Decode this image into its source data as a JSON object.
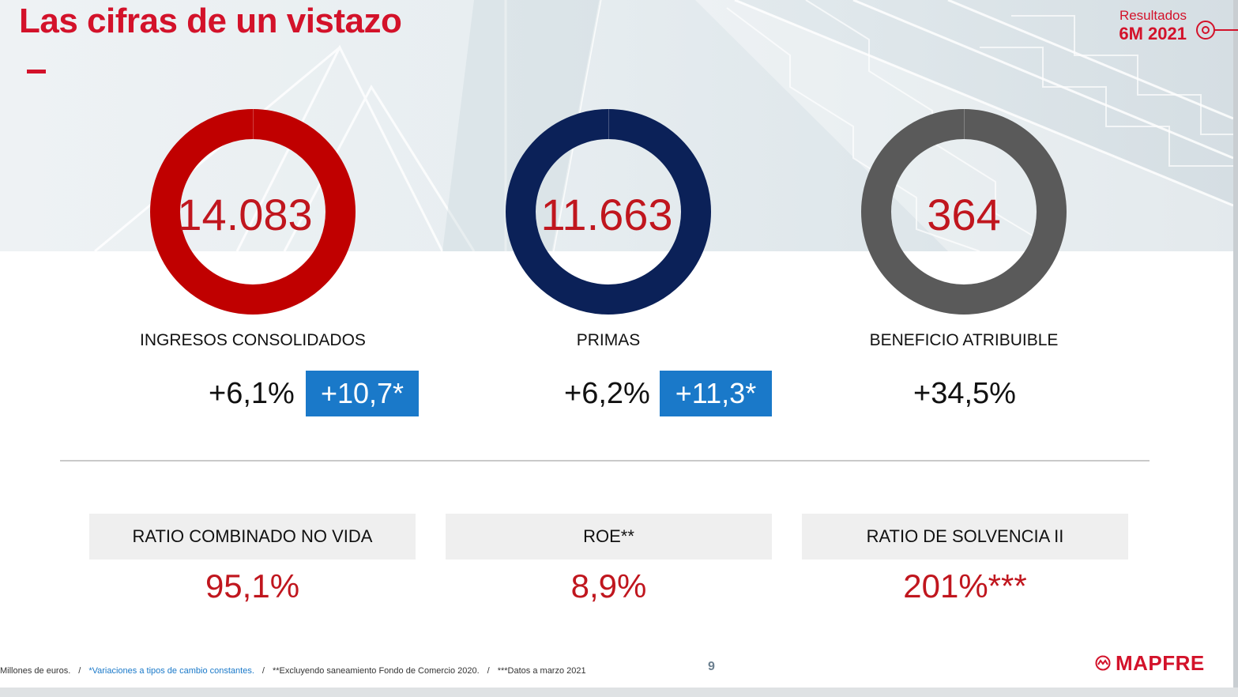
{
  "header": {
    "title": "Las cifras de un vistazo",
    "badge_line1": "Resultados",
    "badge_line2": "6M 2021"
  },
  "kpis": [
    {
      "value": "14.083",
      "label": "INGRESOS CONSOLIDADOS",
      "growth": "+6,1%",
      "growth_constant": "+10,7*",
      "ring_color": "#c00000"
    },
    {
      "value": "11.663",
      "label": "PRIMAS",
      "growth": "+6,2%",
      "growth_constant": "+11,3*",
      "ring_color": "#0b2158"
    },
    {
      "value": "364",
      "label": "BENEFICIO ATRIBUIBLE",
      "growth": "+34,5%",
      "ring_color": "#5a5a5a"
    }
  ],
  "ratios": [
    {
      "label": "RATIO COMBINADO NO VIDA",
      "value": "95,1%"
    },
    {
      "label": "ROE**",
      "value": "8,9%"
    },
    {
      "label": "RATIO DE SOLVENCIA II",
      "value": "201%***"
    }
  ],
  "footer": {
    "note1": "Millones de euros.",
    "note2": "*Variaciones a tipos de cambio constantes.",
    "note3": "**Excluyendo saneamiento Fondo de Comercio 2020.",
    "note4": "***Datos a marzo 2021",
    "separator": "/",
    "page_number": "9",
    "logo_text": "MAPFRE"
  },
  "colors": {
    "brand_red": "#d3122a",
    "value_red": "#c0161e",
    "accent_blue": "#1a79c9"
  }
}
